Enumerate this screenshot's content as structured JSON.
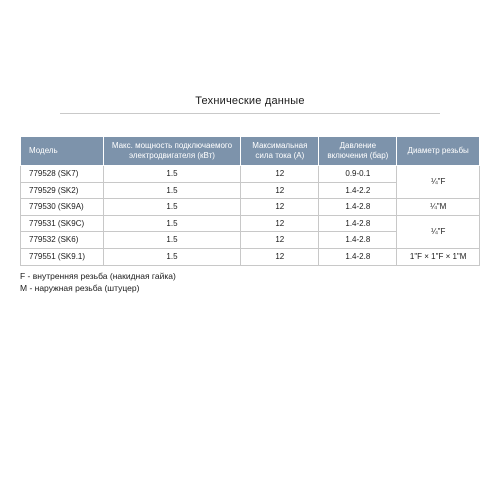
{
  "title": "Технические данные",
  "table": {
    "type": "table",
    "header_bg": "#7d93ab",
    "header_fg": "#ffffff",
    "border_color": "#c8c8c8",
    "col_widths_pct": [
      18,
      30,
      17,
      17,
      18
    ],
    "columns": [
      "Модель",
      "Макс. мощность подключаемого электродвигателя (кВт)",
      "Максимальная сила тока (А)",
      "Давление включения (бар)",
      "Диаметр резьбы"
    ],
    "rows": [
      {
        "cells": [
          "779528 (SK7)",
          "1.5",
          "12",
          "0.9-0.1"
        ],
        "thread": {
          "text": "¼\"F",
          "rowspan": 2
        }
      },
      {
        "cells": [
          "779529 (SK2)",
          "1.5",
          "12",
          "1.4-2.2"
        ]
      },
      {
        "cells": [
          "779530 (SK9A)",
          "1.5",
          "12",
          "1.4-2.8"
        ],
        "thread": {
          "text": "¼\"M",
          "rowspan": 1
        }
      },
      {
        "cells": [
          "779531 (SK9C)",
          "1.5",
          "12",
          "1.4-2.8"
        ],
        "thread": {
          "text": "¼\"F",
          "rowspan": 2
        }
      },
      {
        "cells": [
          "779532 (SK6)",
          "1.5",
          "12",
          "1.4-2.8"
        ]
      },
      {
        "cells": [
          "779551 (SK9.1)",
          "1.5",
          "12",
          "1.4-2.8"
        ],
        "thread": {
          "text": "1\"F × 1\"F × 1\"M",
          "rowspan": 1
        }
      }
    ]
  },
  "footnotes": [
    "F - внутренняя резьба (накидная гайка)",
    "M - наружная резьба (штуцер)"
  ]
}
